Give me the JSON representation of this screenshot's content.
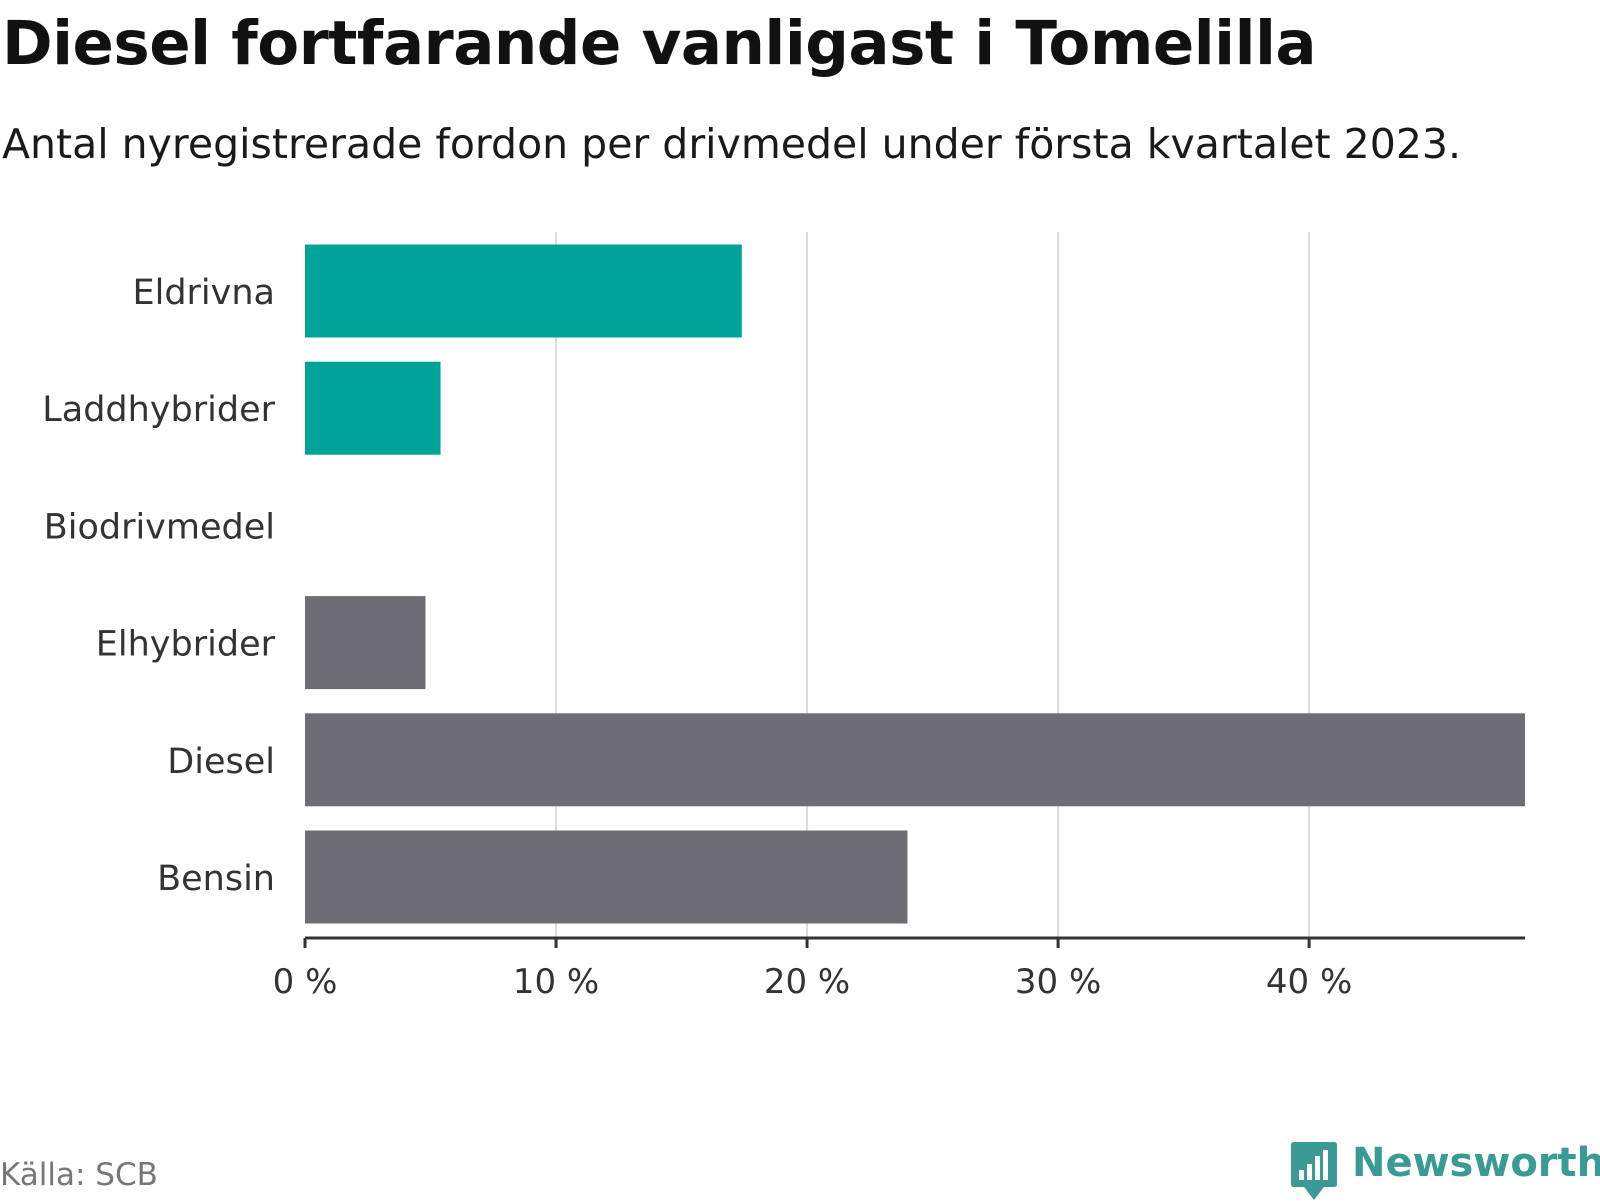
{
  "title": "Diesel fortfarande vanligast i Tomelilla",
  "subtitle": "Antal nyregistrerade fordon per drivmedel under första kvartalet 2023.",
  "source": "Källa: SCB",
  "logo": {
    "text": "Newsworthy",
    "icon": "newsworthy-chat-bars-icon"
  },
  "colors": {
    "green": "#00a39a",
    "gray": "#6e6d75",
    "grid": "#dcdcdc",
    "axis": "#333333",
    "tick_text": "#333333"
  },
  "chart_data": {
    "type": "bar",
    "orientation": "horizontal",
    "categories": [
      "Eldrivna",
      "Laddhybrider",
      "Biodrivmedel",
      "Elhybrider",
      "Diesel",
      "Bensin"
    ],
    "values": [
      17.4,
      5.4,
      0,
      4.8,
      48.6,
      24.0
    ],
    "bar_colors": [
      "green",
      "green",
      "green",
      "gray",
      "gray",
      "gray"
    ],
    "xlim": [
      0,
      48.6
    ],
    "xticks": [
      {
        "value": 0,
        "label": "0 %"
      },
      {
        "value": 10,
        "label": "10 %"
      },
      {
        "value": 20,
        "label": "20 %"
      },
      {
        "value": 30,
        "label": "30 %"
      },
      {
        "value": 40,
        "label": "40 %"
      }
    ],
    "grid": true,
    "xlabel": "",
    "ylabel": ""
  }
}
